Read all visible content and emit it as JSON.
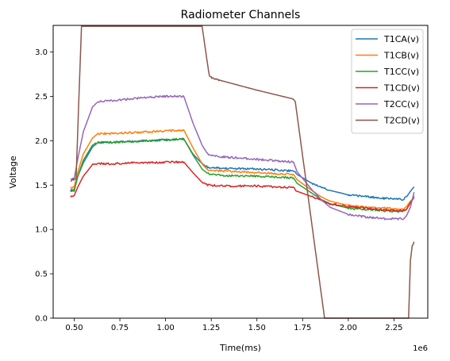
{
  "chart_data": {
    "type": "line",
    "title": "Radiometer Channels",
    "xlabel": "Time(ms)",
    "ylabel": "Voltage",
    "x_multiplier_label": "1e6",
    "xlim": [
      0.385,
      2.435
    ],
    "ylim": [
      0.0,
      3.3
    ],
    "x_ticks": [
      0.5,
      0.75,
      1.0,
      1.25,
      1.5,
      1.75,
      2.0,
      2.25
    ],
    "x_tick_labels": [
      "0.50",
      "0.75",
      "1.00",
      "1.25",
      "1.50",
      "1.75",
      "2.00",
      "2.25"
    ],
    "y_ticks": [
      0.0,
      0.5,
      1.0,
      1.5,
      2.0,
      2.5,
      3.0
    ],
    "y_tick_labels": [
      "0.0",
      "0.5",
      "1.0",
      "1.5",
      "2.0",
      "2.5",
      "3.0"
    ],
    "grid": false,
    "legend_position": "top-right",
    "series": [
      {
        "name": "T1CA(v)",
        "color": "#1f77b4",
        "x": [
          0.48,
          0.5,
          0.52,
          0.55,
          0.6,
          0.63,
          0.7,
          0.8,
          0.9,
          1.0,
          1.1,
          1.15,
          1.2,
          1.23,
          1.3,
          1.5,
          1.7,
          1.72,
          1.8,
          1.85,
          1.9,
          2.0,
          2.1,
          2.2,
          2.3,
          2.32,
          2.34,
          2.36
        ],
        "y": [
          1.44,
          1.45,
          1.6,
          1.75,
          1.93,
          1.98,
          1.98,
          1.99,
          2.0,
          2.01,
          2.02,
          1.85,
          1.74,
          1.7,
          1.69,
          1.68,
          1.66,
          1.62,
          1.52,
          1.48,
          1.44,
          1.39,
          1.37,
          1.35,
          1.34,
          1.37,
          1.43,
          1.48
        ]
      },
      {
        "name": "T1CB(v)",
        "color": "#ff7f0e",
        "x": [
          0.48,
          0.5,
          0.52,
          0.55,
          0.6,
          0.63,
          0.7,
          0.8,
          0.9,
          1.0,
          1.1,
          1.15,
          1.2,
          1.23,
          1.3,
          1.5,
          1.7,
          1.72,
          1.8,
          1.85,
          1.9,
          2.0,
          2.1,
          2.2,
          2.3,
          2.32,
          2.34,
          2.36
        ],
        "y": [
          1.47,
          1.48,
          1.65,
          1.85,
          2.03,
          2.08,
          2.08,
          2.09,
          2.1,
          2.11,
          2.12,
          1.92,
          1.74,
          1.67,
          1.66,
          1.64,
          1.62,
          1.56,
          1.44,
          1.37,
          1.32,
          1.27,
          1.25,
          1.24,
          1.23,
          1.26,
          1.32,
          1.36
        ]
      },
      {
        "name": "T1CC(v)",
        "color": "#2ca02c",
        "x": [
          0.48,
          0.5,
          0.52,
          0.55,
          0.6,
          0.63,
          0.7,
          0.8,
          0.9,
          1.0,
          1.1,
          1.15,
          1.2,
          1.23,
          1.3,
          1.5,
          1.7,
          1.72,
          1.8,
          1.85,
          1.9,
          2.0,
          2.1,
          2.2,
          2.3,
          2.32,
          2.34,
          2.36
        ],
        "y": [
          1.42,
          1.43,
          1.6,
          1.78,
          1.95,
          1.98,
          1.98,
          1.99,
          2.0,
          2.01,
          2.02,
          1.84,
          1.68,
          1.63,
          1.61,
          1.6,
          1.58,
          1.52,
          1.41,
          1.34,
          1.29,
          1.24,
          1.22,
          1.21,
          1.2,
          1.23,
          1.3,
          1.38
        ]
      },
      {
        "name": "T1CD(v)",
        "color": "#d62728",
        "x": [
          0.48,
          0.5,
          0.52,
          0.55,
          0.6,
          0.63,
          0.7,
          0.8,
          0.9,
          1.0,
          1.1,
          1.15,
          1.2,
          1.23,
          1.3,
          1.5,
          1.7,
          1.72,
          1.8,
          1.85,
          1.9,
          2.0,
          2.1,
          2.2,
          2.3,
          2.32,
          2.34,
          2.36
        ],
        "y": [
          1.37,
          1.38,
          1.48,
          1.6,
          1.73,
          1.74,
          1.74,
          1.75,
          1.75,
          1.76,
          1.76,
          1.64,
          1.53,
          1.5,
          1.49,
          1.49,
          1.47,
          1.43,
          1.37,
          1.33,
          1.29,
          1.26,
          1.24,
          1.22,
          1.21,
          1.23,
          1.3,
          1.36
        ]
      },
      {
        "name": "T2CC(v)",
        "color": "#9467bd",
        "x": [
          0.48,
          0.5,
          0.52,
          0.55,
          0.6,
          0.63,
          0.7,
          0.8,
          0.9,
          1.0,
          1.1,
          1.15,
          1.2,
          1.23,
          1.3,
          1.5,
          1.7,
          1.72,
          1.8,
          1.85,
          1.9,
          2.0,
          2.1,
          2.2,
          2.3,
          2.32,
          2.34,
          2.36
        ],
        "y": [
          1.56,
          1.57,
          1.8,
          2.1,
          2.38,
          2.44,
          2.45,
          2.47,
          2.49,
          2.5,
          2.5,
          2.2,
          1.95,
          1.85,
          1.82,
          1.79,
          1.76,
          1.65,
          1.45,
          1.34,
          1.25,
          1.17,
          1.14,
          1.12,
          1.12,
          1.16,
          1.25,
          1.42
        ]
      },
      {
        "name": "T2CD(v)",
        "color": "#8c564b",
        "x": [
          0.48,
          0.51,
          0.54,
          0.55,
          1.0,
          1.2,
          1.22,
          1.24,
          1.3,
          1.5,
          1.7,
          1.71,
          1.87,
          2.0,
          2.3,
          2.33,
          2.34,
          2.35,
          2.36
        ],
        "y": [
          1.55,
          1.57,
          3.29,
          3.29,
          3.29,
          3.29,
          3.0,
          2.72,
          2.68,
          2.57,
          2.47,
          2.44,
          0.0,
          0.0,
          0.0,
          0.0,
          0.65,
          0.82,
          0.86
        ]
      }
    ]
  }
}
